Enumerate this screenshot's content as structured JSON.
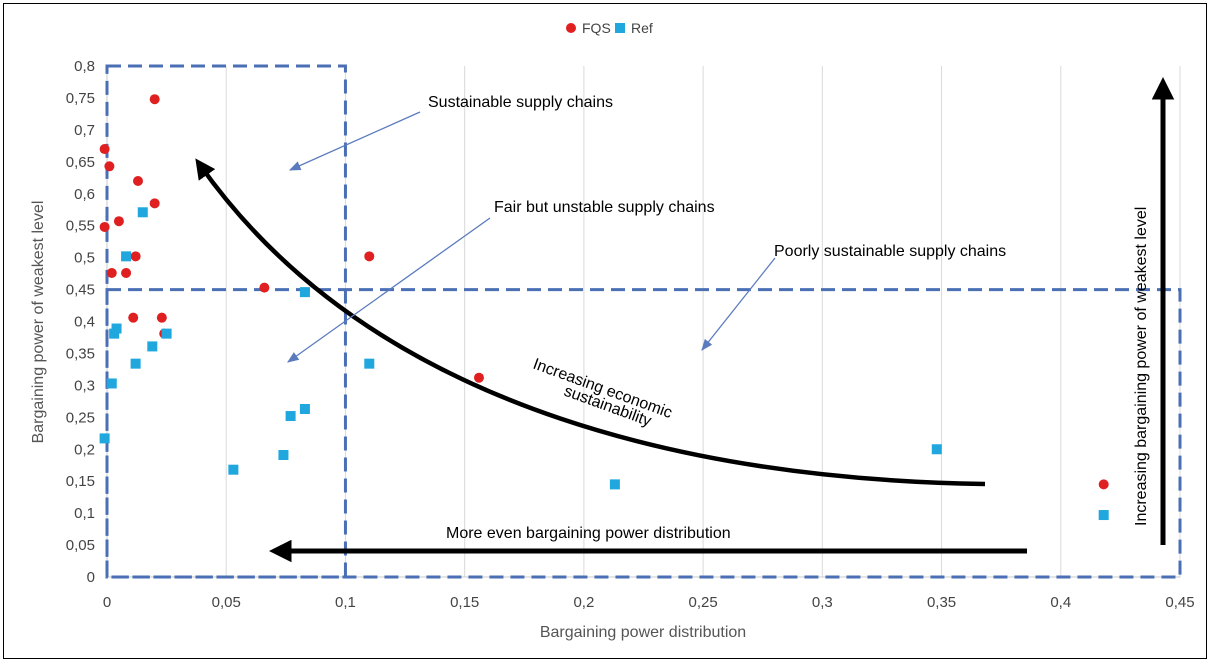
{
  "chart_data": {
    "type": "scatter",
    "xlabel": "Bargaining power distribution",
    "ylabel": "Bargaining power of weakest level",
    "xlim": [
      0,
      0.45
    ],
    "ylim": [
      0,
      0.8
    ],
    "x_ticks": [
      "0",
      "0,05",
      "0,1",
      "0,15",
      "0,2",
      "0,25",
      "0,3",
      "0,35",
      "0,4",
      "0,45"
    ],
    "y_ticks": [
      "0",
      "0,05",
      "0,1",
      "0,15",
      "0,2",
      "0,25",
      "0,3",
      "0,35",
      "0,4",
      "0,45",
      "0,5",
      "0,55",
      "0,6",
      "0,65",
      "0,7",
      "0,75",
      "0,8"
    ],
    "grid": "vertical",
    "legend_position": "top-center",
    "series": [
      {
        "name": "FQS",
        "color": "#e02020",
        "marker": "circle",
        "points": [
          [
            -0.001,
            0.67
          ],
          [
            0.001,
            0.643
          ],
          [
            -0.001,
            0.548
          ],
          [
            0.005,
            0.557
          ],
          [
            0.002,
            0.476
          ],
          [
            0.008,
            0.476
          ],
          [
            0.012,
            0.502
          ],
          [
            0.013,
            0.62
          ],
          [
            0.02,
            0.748
          ],
          [
            0.02,
            0.585
          ],
          [
            0.011,
            0.406
          ],
          [
            0.023,
            0.406
          ],
          [
            0.024,
            0.381
          ],
          [
            0.066,
            0.453
          ],
          [
            0.11,
            0.502
          ],
          [
            0.156,
            0.312
          ],
          [
            0.418,
            0.145
          ]
        ]
      },
      {
        "name": "Ref",
        "color": "#1fa7de",
        "marker": "square",
        "points": [
          [
            -0.001,
            0.217
          ],
          [
            0.002,
            0.303
          ],
          [
            0.003,
            0.381
          ],
          [
            0.004,
            0.389
          ],
          [
            0.008,
            0.502
          ],
          [
            0.012,
            0.334
          ],
          [
            0.015,
            0.571
          ],
          [
            0.019,
            0.361
          ],
          [
            0.025,
            0.381
          ],
          [
            0.053,
            0.168
          ],
          [
            0.074,
            0.191
          ],
          [
            0.077,
            0.252
          ],
          [
            0.083,
            0.263
          ],
          [
            0.083,
            0.446
          ],
          [
            0.11,
            0.334
          ],
          [
            0.213,
            0.145
          ],
          [
            0.348,
            0.2
          ],
          [
            0.418,
            0.097
          ]
        ]
      }
    ],
    "regions": [
      {
        "name": "sustainable-region",
        "x": [
          0,
          0.1
        ],
        "y": [
          0,
          0.8
        ]
      },
      {
        "name": "poorly-sustainable-region",
        "x": [
          0,
          0.45
        ],
        "y": [
          0,
          0.45
        ]
      }
    ],
    "annotations": {
      "sustainable": "Sustainable supply chains",
      "fair_unstable": "Fair but unstable supply chains",
      "poorly_sustainable": "Poorly sustainable supply chains",
      "economic_line1": "Increasing economic",
      "economic_line2": "sustainability",
      "distribution": "More even bargaining power distribution",
      "weakest": "Increasing bargaining power of weakest level"
    }
  }
}
